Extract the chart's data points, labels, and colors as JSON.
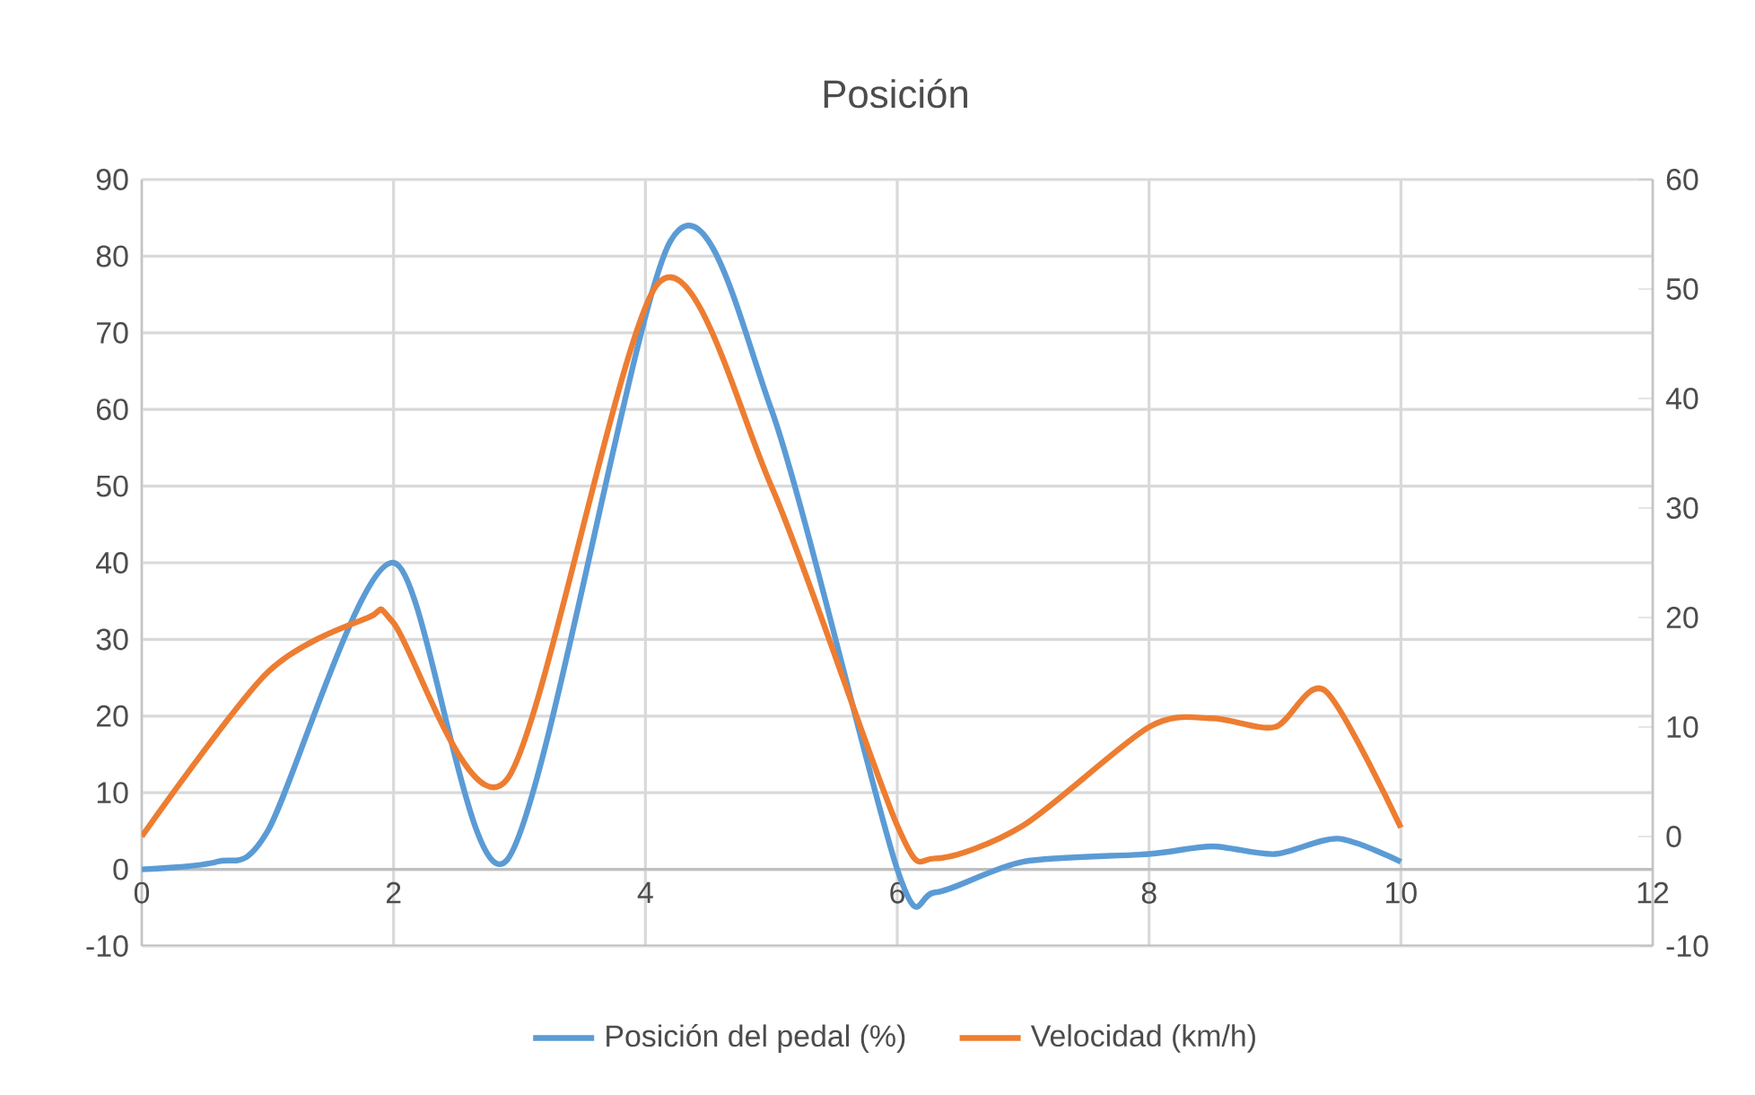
{
  "chart_data": {
    "type": "line",
    "title": "Posición",
    "series": [
      {
        "name": "Posición del pedal (%)",
        "color": "#5b9bd5",
        "x": [
          0,
          0.6,
          1,
          2,
          2.9,
          4.2,
          5,
          6,
          6.3,
          7,
          8,
          8.5,
          9,
          9.5,
          10
        ],
        "values": [
          0,
          1,
          5,
          40,
          1.2,
          82,
          60,
          0,
          -3,
          1,
          2,
          3,
          2,
          4,
          1
        ]
      },
      {
        "name": "Velocidad (km/h)",
        "color": "#ed7d31",
        "axis": "y2",
        "x": [
          0,
          1,
          1.8,
          2,
          2.9,
          4.1,
          5,
          6,
          6.3,
          7,
          8,
          8.5,
          9,
          9.4,
          10
        ],
        "values": [
          0,
          15,
          20,
          19.5,
          5.2,
          50.5,
          32,
          1,
          -2,
          1,
          10,
          10.8,
          10,
          13.3,
          0.8
        ]
      }
    ],
    "xlim": [
      0,
      12
    ],
    "xticks": [
      0,
      2,
      4,
      6,
      8,
      10,
      12
    ],
    "ylim": [
      -10,
      90
    ],
    "yticks": [
      -10,
      0,
      10,
      20,
      30,
      40,
      50,
      60,
      70,
      80,
      90
    ],
    "y2lim": [
      -10,
      60
    ],
    "y2ticks": [
      -10,
      0,
      10,
      20,
      30,
      40,
      50,
      60
    ],
    "grid": true,
    "legend": "bottom",
    "line_style": "solid"
  }
}
